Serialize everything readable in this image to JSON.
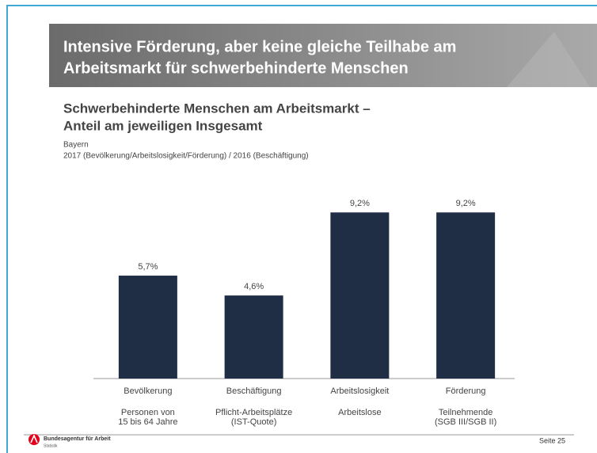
{
  "header": {
    "title": [
      "Intensive Förderung, aber keine gleiche Teilhabe am",
      "Arbeitsmarkt für schwerbehinderte Menschen"
    ]
  },
  "chart_data": {
    "type": "bar",
    "title": [
      "Schwerbehinderte Menschen am Arbeitsmarkt –",
      "Anteil am jeweiligen Insgesamt"
    ],
    "subtitle": [
      "Bayern",
      "2017 (Bevölkerung/Arbeitslosigkeit/Förderung) / 2016 (Beschäftigung)"
    ],
    "categories": [
      "Bevölkerung",
      "Beschäftigung",
      "Arbeitslosigkeit",
      "Förderung"
    ],
    "sublabels": [
      [
        "Personen von",
        "15 bis 64 Jahre"
      ],
      [
        "Pflicht-Arbeitsplätze",
        "(IST-Quote)"
      ],
      [
        "Arbeitslose"
      ],
      [
        "Teilnehmende",
        "(SGB III/SGB II)"
      ]
    ],
    "values": [
      5.7,
      4.6,
      9.2,
      9.2
    ],
    "value_labels": [
      "5,7%",
      "4,6%",
      "9,2%",
      "9,2%"
    ],
    "color": "#1f2d45"
  },
  "footer": {
    "org": "Bundesagentur für Arbeit",
    "unit": "Statistik",
    "page": "Seite 25"
  }
}
